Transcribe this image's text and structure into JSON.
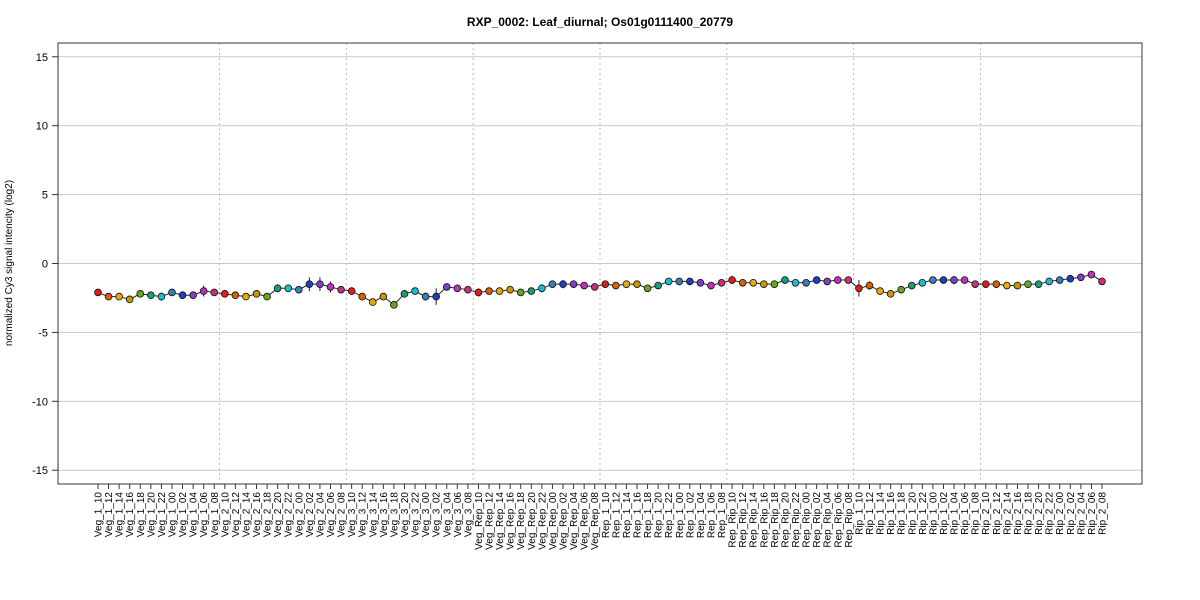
{
  "chart_data": {
    "type": "line",
    "title": "RXP_0002: Leaf_diurnal; Os01g0111400_20779",
    "xlabel": "",
    "ylabel": "normalized Cy3 signal intencity (log2)",
    "ylim": [
      -16,
      16
    ],
    "yticks": [
      -15,
      -10,
      -5,
      0,
      5,
      10,
      15
    ],
    "grid": true,
    "group_separators_after": [
      "Veg_1_08",
      "Veg_2_08",
      "Veg_3_08",
      "Veg_Rep_08",
      "Rep_1_08",
      "Rep_Rip_08",
      "Rip_1_08"
    ],
    "categories": [
      "Veg_1_10",
      "Veg_1_12",
      "Veg_1_14",
      "Veg_1_16",
      "Veg_1_18",
      "Veg_1_20",
      "Veg_1_22",
      "Veg_1_00",
      "Veg_1_02",
      "Veg_1_04",
      "Veg_1_06",
      "Veg_1_08",
      "Veg_2_10",
      "Veg_2_12",
      "Veg_2_14",
      "Veg_2_16",
      "Veg_2_18",
      "Veg_2_20",
      "Veg_2_22",
      "Veg_2_00",
      "Veg_2_02",
      "Veg_2_04",
      "Veg_2_06",
      "Veg_2_08",
      "Veg_3_10",
      "Veg_3_12",
      "Veg_3_14",
      "Veg_3_16",
      "Veg_3_18",
      "Veg_3_20",
      "Veg_3_22",
      "Veg_3_00",
      "Veg_3_02",
      "Veg_3_04",
      "Veg_3_06",
      "Veg_3_08",
      "Veg_Rep_10",
      "Veg_Rep_12",
      "Veg_Rep_14",
      "Veg_Rep_16",
      "Veg_Rep_18",
      "Veg_Rep_20",
      "Veg_Rep_22",
      "Veg_Rep_00",
      "Veg_Rep_02",
      "Veg_Rep_04",
      "Veg_Rep_06",
      "Veg_Rep_08",
      "Rep_1_10",
      "Rep_1_12",
      "Rep_1_14",
      "Rep_1_16",
      "Rep_1_18",
      "Rep_1_20",
      "Rep_1_22",
      "Rep_1_00",
      "Rep_1_02",
      "Rep_1_04",
      "Rep_1_06",
      "Rep_1_08",
      "Rep_Rip_10",
      "Rep_Rip_12",
      "Rep_Rip_14",
      "Rep_Rip_16",
      "Rep_Rip_18",
      "Rep_Rip_20",
      "Rep_Rip_22",
      "Rep_Rip_00",
      "Rep_Rip_02",
      "Rep_Rip_04",
      "Rep_Rip_06",
      "Rep_Rip_08",
      "Rip_1_10",
      "Rip_1_12",
      "Rip_1_14",
      "Rip_1_16",
      "Rip_1_18",
      "Rip_1_20",
      "Rip_1_22",
      "Rip_1_00",
      "Rip_1_02",
      "Rip_1_04",
      "Rip_1_06",
      "Rip_1_08",
      "Rip_2_10",
      "Rip_2_12",
      "Rip_2_14",
      "Rip_2_16",
      "Rip_2_18",
      "Rip_2_20",
      "Rip_2_22",
      "Rip_2_00",
      "Rip_2_02",
      "Rip_2_04",
      "Rip_2_06",
      "Rip_2_08"
    ],
    "values": [
      -2.1,
      -2.4,
      -2.4,
      -2.6,
      -2.2,
      -2.3,
      -2.4,
      -2.1,
      -2.3,
      -2.3,
      -2.0,
      -2.1,
      -2.2,
      -2.3,
      -2.4,
      -2.2,
      -2.4,
      -1.8,
      -1.8,
      -1.9,
      -1.5,
      -1.5,
      -1.7,
      -1.9,
      -2.0,
      -2.4,
      -2.8,
      -2.4,
      -3.0,
      -2.2,
      -2.0,
      -2.4,
      -2.4,
      -1.7,
      -1.8,
      -1.9,
      -2.1,
      -2.0,
      -2.0,
      -1.9,
      -2.1,
      -2.0,
      -1.8,
      -1.5,
      -1.5,
      -1.5,
      -1.6,
      -1.7,
      -1.5,
      -1.6,
      -1.5,
      -1.5,
      -1.8,
      -1.6,
      -1.3,
      -1.3,
      -1.3,
      -1.4,
      -1.6,
      -1.4,
      -1.2,
      -1.4,
      -1.4,
      -1.5,
      -1.5,
      -1.2,
      -1.4,
      -1.4,
      -1.2,
      -1.3,
      -1.2,
      -1.2,
      -1.8,
      -1.6,
      -2.0,
      -2.2,
      -1.9,
      -1.6,
      -1.4,
      -1.2,
      -1.2,
      -1.2,
      -1.2,
      -1.5,
      -1.5,
      -1.5,
      -1.6,
      -1.6,
      -1.5,
      -1.5,
      -1.3,
      -1.2,
      -1.1,
      -1.0,
      -0.8,
      -1.3
    ],
    "errors": [
      0.1,
      0.1,
      0.1,
      0.1,
      0.1,
      0.1,
      0.3,
      0.1,
      0.1,
      0.1,
      0.4,
      0.1,
      0.1,
      0.1,
      0.2,
      0.1,
      0.1,
      0.3,
      0.1,
      0.1,
      0.5,
      0.5,
      0.4,
      0.1,
      0.1,
      0.1,
      0.1,
      0.2,
      0.2,
      0.1,
      0.1,
      0.3,
      0.6,
      0.1,
      0.1,
      0.1,
      0.3,
      0.1,
      0.1,
      0.1,
      0.2,
      0.1,
      0.3,
      0.1,
      0.3,
      0.1,
      0.1,
      0.1,
      0.1,
      0.1,
      0.1,
      0.1,
      0.2,
      0.2,
      0.1,
      0.1,
      0.1,
      0.1,
      0.1,
      0.1,
      0.3,
      0.1,
      0.1,
      0.1,
      0.1,
      0.1,
      0.1,
      0.1,
      0.1,
      0.1,
      0.1,
      0.1,
      0.6,
      0.3,
      0.2,
      0.2,
      0.1,
      0.1,
      0.2,
      0.1,
      0.2,
      0.3,
      0.2,
      0.1,
      0.1,
      0.1,
      0.1,
      0.2,
      0.1,
      0.1,
      0.1,
      0.1,
      0.1,
      0.1,
      0.1,
      0.1
    ],
    "point_colors": [
      "#e41a1c",
      "#d95f02",
      "#e6ab02",
      "#c49a00",
      "#66a61e",
      "#1b9e77",
      "#17becf",
      "#377eb8",
      "#1f3fbf",
      "#7b3fc8",
      "#c030c0",
      "#c8307a"
    ]
  }
}
